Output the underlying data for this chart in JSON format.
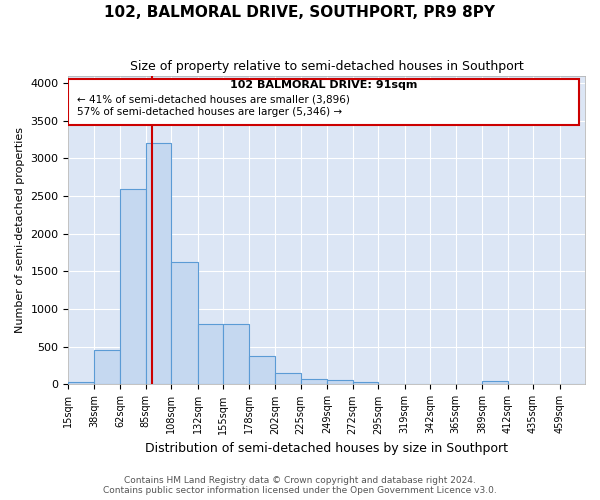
{
  "title": "102, BALMORAL DRIVE, SOUTHPORT, PR9 8PY",
  "subtitle": "Size of property relative to semi-detached houses in Southport",
  "xlabel": "Distribution of semi-detached houses by size in Southport",
  "ylabel": "Number of semi-detached properties",
  "footer_line1": "Contains HM Land Registry data © Crown copyright and database right 2024.",
  "footer_line2": "Contains public sector information licensed under the Open Government Licence v3.0.",
  "annotation_text_line1": "102 BALMORAL DRIVE: 91sqm",
  "annotation_text_line2": "← 41% of semi-detached houses are smaller (3,896)",
  "annotation_text_line3": "57% of semi-detached houses are larger (5,346) →",
  "bin_edges": [
    15,
    38,
    62,
    85,
    108,
    132,
    155,
    178,
    202,
    225,
    249,
    272,
    295,
    319,
    342,
    365,
    389,
    412,
    435,
    459,
    482
  ],
  "bin_counts": [
    30,
    460,
    2590,
    3200,
    1620,
    800,
    800,
    375,
    155,
    75,
    60,
    35,
    10,
    10,
    10,
    10,
    40,
    5,
    5,
    0
  ],
  "bar_color": "#c5d8f0",
  "bar_edge_color": "#5b9bd5",
  "vline_color": "#cc0000",
  "annotation_box_color": "#cc0000",
  "plot_bg_color": "#dce6f5",
  "figure_bg_color": "#ffffff",
  "grid_color": "#ffffff",
  "ylim": [
    0,
    4100
  ],
  "yticks": [
    0,
    500,
    1000,
    1500,
    2000,
    2500,
    3000,
    3500,
    4000
  ],
  "property_size": 91
}
